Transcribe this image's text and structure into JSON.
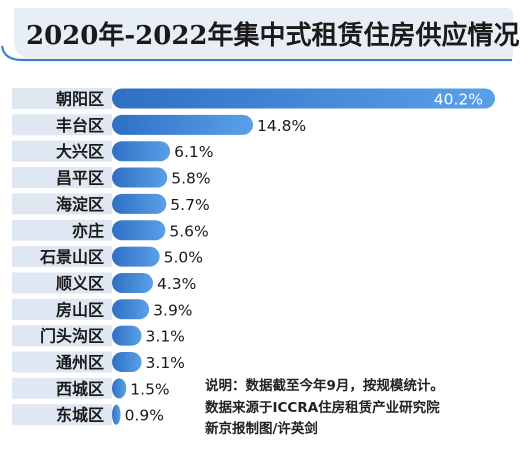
{
  "chart_data": {
    "type": "bar",
    "orientation": "horizontal",
    "title": "2020年-2022年集中式租赁住房供应情况",
    "categories": [
      "朝阳区",
      "丰台区",
      "大兴区",
      "昌平区",
      "海淀区",
      "亦庄",
      "石景山区",
      "顺义区",
      "房山区",
      "门头沟区",
      "通州区",
      "西城区",
      "东城区"
    ],
    "values": [
      40.2,
      14.8,
      6.1,
      5.8,
      5.7,
      5.6,
      5.0,
      4.3,
      3.9,
      3.1,
      3.1,
      1.5,
      0.9
    ],
    "value_labels": [
      "40.2%",
      "14.8%",
      "6.1%",
      "5.8%",
      "5.7%",
      "5.6%",
      "5.0%",
      "4.3%",
      "3.9%",
      "3.1%",
      "3.1%",
      "1.5%",
      "0.9%"
    ],
    "unit": "%",
    "xlim": [
      0,
      40.2
    ],
    "grid": false,
    "legend": "none"
  },
  "note": {
    "lines": [
      "说明：数据截至今年9月，按规模统计。",
      "数据来源于ICCRA住房租赁产业研究院",
      "新京报制图/许英剑"
    ]
  },
  "colors": {
    "title_bg": "#e8eef5",
    "title_text": "#1a1a1a",
    "accent": "#3b7fd0",
    "label_bg": "#dfe8f2",
    "bar_start": "#2f6fc4",
    "bar_end": "#5aa0e8",
    "value_text": "#1a1a1a"
  }
}
